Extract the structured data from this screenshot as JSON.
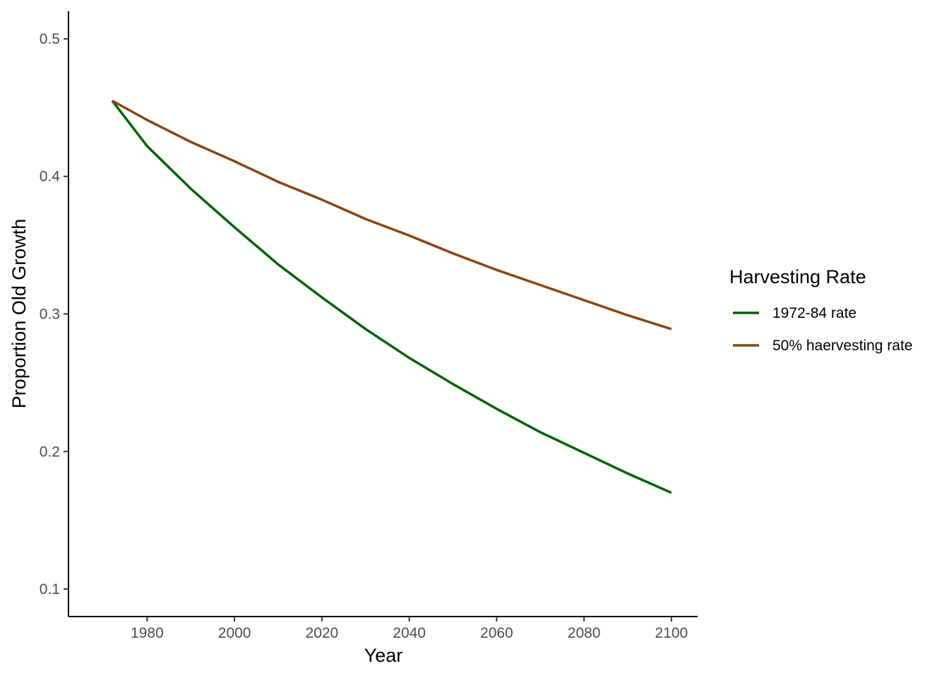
{
  "chart_data": {
    "type": "line",
    "title": "",
    "xlabel": "Year",
    "ylabel": "Proportion Old Growth",
    "xlim": [
      1962,
      2106
    ],
    "ylim": [
      0.08,
      0.52
    ],
    "x_ticks": [
      1980,
      2000,
      2020,
      2040,
      2060,
      2080,
      2100
    ],
    "x_tick_labels": [
      "1980",
      "2000",
      "2020",
      "2040",
      "2060",
      "2080",
      "2100"
    ],
    "y_ticks": [
      0.1,
      0.2,
      0.3,
      0.4,
      0.5
    ],
    "y_tick_labels": [
      "0.1",
      "0.2",
      "0.3",
      "0.4",
      "0.5"
    ],
    "grid": false,
    "legend": {
      "title": "Harvesting Rate",
      "position": "right"
    },
    "series": [
      {
        "name": "1972-84 rate",
        "color": "#006400",
        "x": [
          1972,
          1980,
          1990,
          2000,
          2010,
          2020,
          2030,
          2040,
          2050,
          2060,
          2070,
          2080,
          2090,
          2100
        ],
        "y": [
          0.455,
          0.422,
          0.391,
          0.363,
          0.336,
          0.312,
          0.289,
          0.268,
          0.249,
          0.231,
          0.214,
          0.199,
          0.184,
          0.17
        ]
      },
      {
        "name": "50% haervesting rate",
        "color": "#8B4513",
        "x": [
          1972,
          1980,
          1990,
          2000,
          2010,
          2020,
          2030,
          2040,
          2050,
          2060,
          2070,
          2080,
          2090,
          2100
        ],
        "y": [
          0.455,
          0.441,
          0.425,
          0.411,
          0.396,
          0.383,
          0.369,
          0.357,
          0.344,
          0.332,
          0.321,
          0.31,
          0.299,
          0.289
        ]
      }
    ]
  }
}
